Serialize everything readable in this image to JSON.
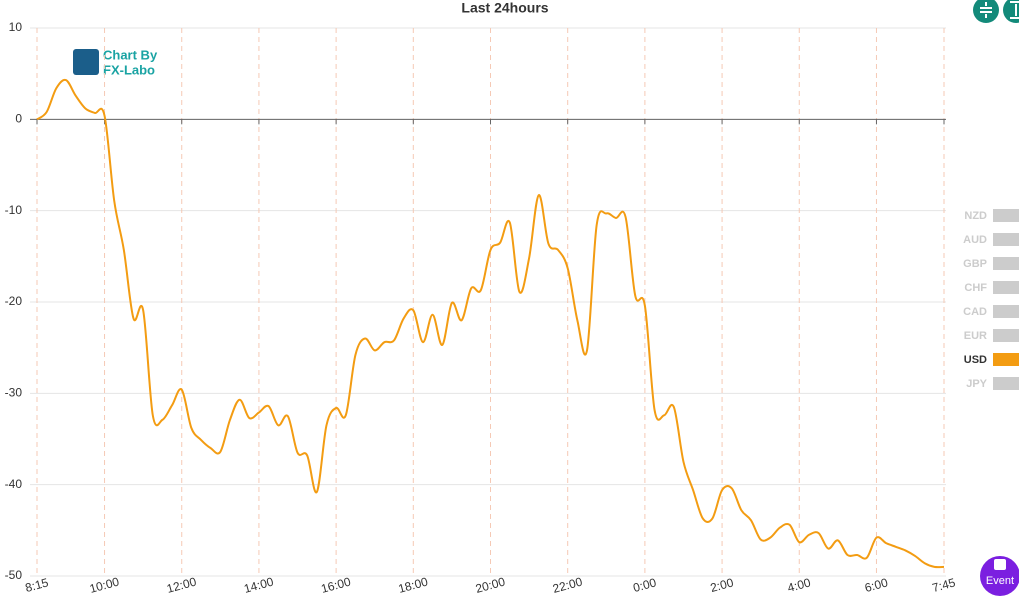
{
  "chart_data": {
    "type": "line",
    "title": "Last 24hours",
    "watermark": [
      "Chart By",
      "FX-Labo"
    ],
    "event_button": "Event",
    "categories": [
      "8:15",
      null,
      null,
      null,
      null,
      null,
      null,
      "10:00",
      null,
      null,
      null,
      null,
      null,
      null,
      null,
      "12:00",
      null,
      null,
      null,
      null,
      null,
      null,
      null,
      "14:00",
      null,
      null,
      null,
      null,
      null,
      null,
      null,
      "16:00",
      null,
      null,
      null,
      null,
      null,
      null,
      null,
      "18:00",
      null,
      null,
      null,
      null,
      null,
      null,
      null,
      "20:00",
      null,
      null,
      null,
      null,
      null,
      null,
      null,
      "22:00",
      null,
      null,
      null,
      null,
      null,
      null,
      null,
      "0:00",
      null,
      null,
      null,
      null,
      null,
      null,
      null,
      "2:00",
      null,
      null,
      null,
      null,
      null,
      null,
      null,
      "4:00",
      null,
      null,
      null,
      null,
      null,
      null,
      null,
      "6:00",
      null,
      null,
      null,
      null,
      null,
      null,
      "7:45"
    ],
    "series": [
      {
        "name": "USD",
        "color": "#f39c12",
        "values": [
          0,
          0.8,
          3.4,
          4.3,
          2.6,
          1.2,
          0.7,
          0.4,
          -8.9,
          -14.3,
          -21.8,
          -20.9,
          -32.4,
          -32.9,
          -31.3,
          -29.6,
          -33.8,
          -35.1,
          -36,
          -36.4,
          -32.9,
          -30.7,
          -32.7,
          -32.1,
          -31.4,
          -33.5,
          -32.5,
          -36.5,
          -36.8,
          -40.8,
          -33.5,
          -31.6,
          -32.4,
          -25.8,
          -24,
          -25.3,
          -24.4,
          -24.2,
          -21.8,
          -20.9,
          -24.4,
          -21.4,
          -24.7,
          -20.1,
          -22,
          -18.5,
          -18.7,
          -14.3,
          -13.5,
          -11.3,
          -18.9,
          -15.2,
          -8.3,
          -13.6,
          -14.3,
          -16.3,
          -22,
          -25.3,
          -11.6,
          -10.3,
          -10.8,
          -10.7,
          -19.3,
          -20.4,
          -31.8,
          -32.4,
          -31.5,
          -37.5,
          -40.6,
          -43.7,
          -43.7,
          -40.6,
          -40.4,
          -42.8,
          -43.9,
          -46,
          -45.8,
          -44.7,
          -44.4,
          -46.3,
          -45.5,
          -45.3,
          -47,
          -46.1,
          -47.7,
          -47.7,
          -48,
          -45.8,
          -46.4,
          -46.8,
          -47.2,
          -47.8,
          -48.6,
          -49,
          -49
        ]
      }
    ],
    "legend": [
      {
        "name": "NZD",
        "color": "#cccccc"
      },
      {
        "name": "AUD",
        "color": "#cccccc"
      },
      {
        "name": "GBP",
        "color": "#cccccc"
      },
      {
        "name": "CHF",
        "color": "#cccccc"
      },
      {
        "name": "CAD",
        "color": "#cccccc"
      },
      {
        "name": "EUR",
        "color": "#cccccc"
      },
      {
        "name": "USD",
        "color": "#f39c12"
      },
      {
        "name": "JPY",
        "color": "#cccccc"
      }
    ],
    "ylim": [
      -50,
      10
    ],
    "yticks": [
      10,
      0,
      -10,
      -20,
      -30,
      -40,
      -50
    ],
    "grid": true
  }
}
